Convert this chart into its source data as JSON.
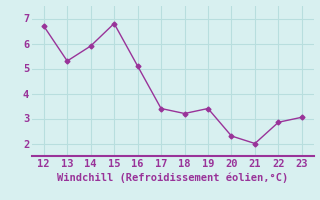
{
  "x": [
    12,
    13,
    14,
    15,
    16,
    17,
    18,
    19,
    20,
    21,
    22,
    23
  ],
  "y": [
    6.7,
    5.3,
    5.9,
    6.8,
    5.1,
    3.4,
    3.2,
    3.4,
    2.3,
    2.0,
    2.85,
    3.05
  ],
  "line_color": "#993399",
  "marker": "D",
  "marker_size": 2.5,
  "bg_color": "#d8f0f0",
  "grid_color": "#b8dede",
  "xlabel": "Windchill (Refroidissement éolien,°C)",
  "xlabel_fontsize": 7.5,
  "tick_fontsize": 7.5,
  "xlim": [
    11.5,
    23.5
  ],
  "ylim": [
    1.5,
    7.5
  ],
  "yticks": [
    2,
    3,
    4,
    5,
    6,
    7
  ],
  "xticks": [
    12,
    13,
    14,
    15,
    16,
    17,
    18,
    19,
    20,
    21,
    22,
    23
  ],
  "spine_color": "#993399",
  "bottom_line_color": "#993399"
}
